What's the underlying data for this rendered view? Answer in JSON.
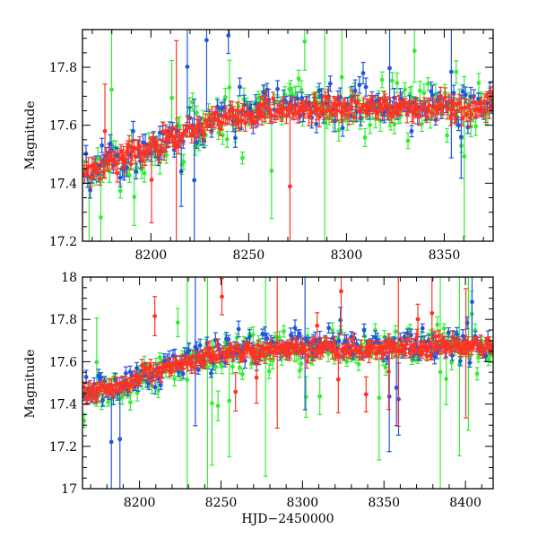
{
  "chart_data": [
    {
      "type": "scatter",
      "panel": "top",
      "xlabel": "",
      "ylabel": "Magnitude",
      "xlim": [
        8165,
        8375
      ],
      "ylim": [
        17.93,
        17.2
      ],
      "y_inverted": true,
      "xticks": [
        8200,
        8250,
        8300,
        8350
      ],
      "xtick_labels": [
        "8200",
        "8250",
        "8300",
        "8350"
      ],
      "yticks": [
        17.2,
        17.4,
        17.6,
        17.8
      ],
      "ytick_labels": [
        "17.2",
        "17.4",
        "17.6",
        "17.8"
      ],
      "series": [
        {
          "color": "#33ee33",
          "trend": [
            [
              8165,
              17.43
            ],
            [
              8200,
              17.5
            ],
            [
              8230,
              17.6
            ],
            [
              8260,
              17.66
            ],
            [
              8300,
              17.66
            ],
            [
              8375,
              17.66
            ]
          ]
        },
        {
          "color": "#2255dd",
          "trend": [
            [
              8165,
              17.45
            ],
            [
              8200,
              17.52
            ],
            [
              8230,
              17.62
            ],
            [
              8260,
              17.67
            ],
            [
              8300,
              17.67
            ],
            [
              8375,
              17.67
            ]
          ]
        },
        {
          "color": "#ff3322",
          "trend": [
            [
              8165,
              17.44
            ],
            [
              8200,
              17.52
            ],
            [
              8230,
              17.61
            ],
            [
              8260,
              17.65
            ],
            [
              8300,
              17.66
            ],
            [
              8375,
              17.66
            ]
          ]
        }
      ]
    },
    {
      "type": "scatter",
      "panel": "bottom",
      "xlabel": "HJD−2450000",
      "ylabel": "Magnitude",
      "xlim": [
        8165,
        8417
      ],
      "ylim": [
        18.0,
        17.0
      ],
      "y_inverted": true,
      "xticks": [
        8200,
        8250,
        8300,
        8350,
        8400
      ],
      "xtick_labels": [
        "8200",
        "8250",
        "8300",
        "8350",
        "8400"
      ],
      "yticks": [
        17.0,
        17.2,
        17.4,
        17.6,
        17.8,
        18.0
      ],
      "ytick_labels": [
        "17",
        "17.2",
        "17.4",
        "17.6",
        "17.8",
        "18"
      ],
      "series": [
        {
          "color": "#33ee33",
          "trend": [
            [
              8165,
              17.43
            ],
            [
              8200,
              17.5
            ],
            [
              8230,
              17.6
            ],
            [
              8260,
              17.66
            ],
            [
              8300,
              17.66
            ],
            [
              8417,
              17.67
            ]
          ]
        },
        {
          "color": "#2255dd",
          "trend": [
            [
              8165,
              17.45
            ],
            [
              8200,
              17.52
            ],
            [
              8230,
              17.62
            ],
            [
              8260,
              17.67
            ],
            [
              8300,
              17.67
            ],
            [
              8417,
              17.68
            ]
          ]
        },
        {
          "color": "#ff3322",
          "trend": [
            [
              8165,
              17.44
            ],
            [
              8200,
              17.52
            ],
            [
              8230,
              17.61
            ],
            [
              8260,
              17.65
            ],
            [
              8300,
              17.66
            ],
            [
              8417,
              17.67
            ]
          ]
        }
      ]
    }
  ]
}
